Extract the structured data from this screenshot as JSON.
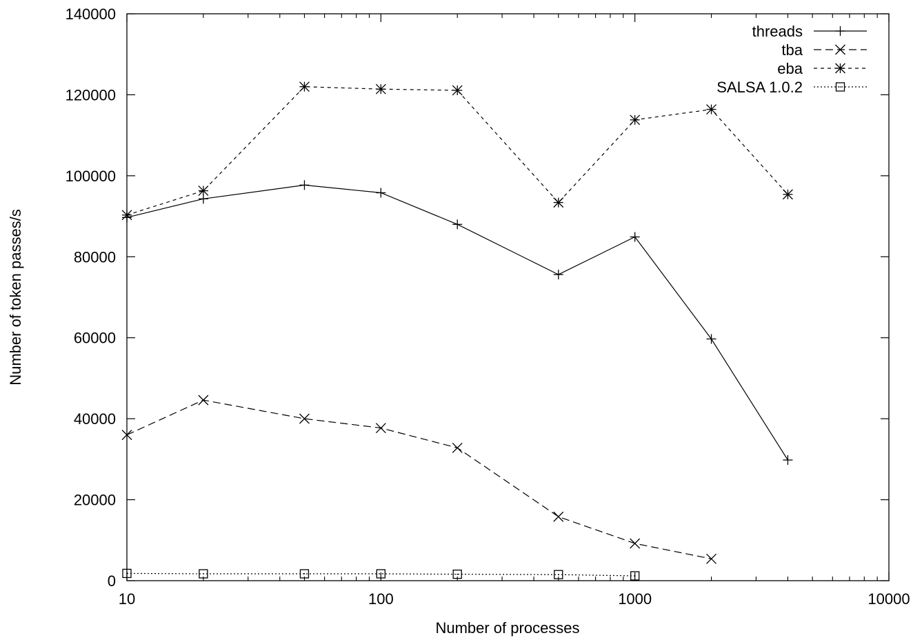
{
  "chart_data": {
    "type": "line",
    "title": "",
    "xlabel": "Number of processes",
    "ylabel": "Number of token passes/s",
    "xscale": "log",
    "xlim": [
      10,
      10000
    ],
    "ylim": [
      0,
      140000
    ],
    "xticks": [
      10,
      100,
      1000,
      10000
    ],
    "xtick_labels": [
      "10",
      "100",
      "1000",
      "10000"
    ],
    "yticks": [
      0,
      20000,
      40000,
      60000,
      80000,
      100000,
      120000,
      140000
    ],
    "ytick_labels": [
      "0",
      "20000",
      "40000",
      "60000",
      "80000",
      "100000",
      "120000",
      "140000"
    ],
    "grid": false,
    "legend_position": "top-right",
    "series": [
      {
        "name": "threads",
        "line_style": "solid",
        "marker": "plus",
        "x": [
          10,
          20,
          50,
          100,
          200,
          500,
          1000,
          2000,
          4000
        ],
        "values": [
          89700,
          94300,
          97700,
          95800,
          88000,
          75600,
          84900,
          59700,
          29800
        ]
      },
      {
        "name": "tba",
        "line_style": "dashed",
        "marker": "cross",
        "x": [
          10,
          20,
          50,
          100,
          200,
          500,
          1000,
          2000
        ],
        "values": [
          36000,
          44600,
          40000,
          37700,
          32800,
          15800,
          9200,
          5400
        ]
      },
      {
        "name": "eba",
        "line_style": "short-dashed",
        "marker": "star",
        "x": [
          10,
          20,
          50,
          100,
          200,
          500,
          1000,
          2000,
          4000
        ],
        "values": [
          90300,
          96300,
          122000,
          121400,
          121100,
          93400,
          113800,
          116400,
          95400
        ]
      },
      {
        "name": "SALSA 1.0.2",
        "line_style": "dotted",
        "marker": "square",
        "x": [
          10,
          20,
          50,
          100,
          200,
          500,
          1000
        ],
        "values": [
          1800,
          1700,
          1700,
          1700,
          1600,
          1500,
          1200
        ]
      }
    ]
  }
}
